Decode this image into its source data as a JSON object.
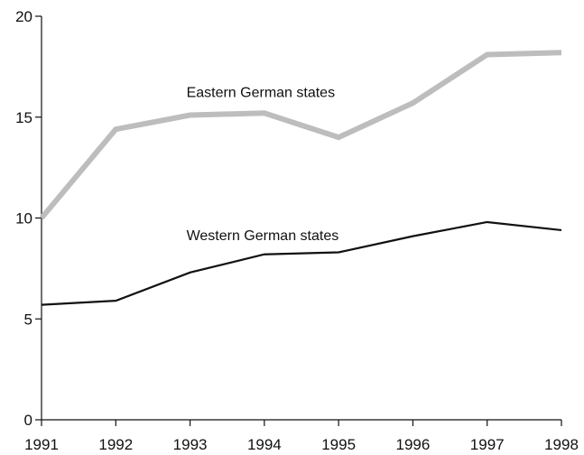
{
  "chart_data": {
    "type": "line",
    "title": "",
    "xlabel": "",
    "ylabel": "",
    "x": [
      1991,
      1992,
      1993,
      1994,
      1995,
      1996,
      1997,
      1998
    ],
    "x_tick_labels": [
      "1991",
      "1992",
      "1993",
      "1994",
      "1995",
      "1996",
      "1997",
      "1998"
    ],
    "ylim": [
      0,
      20
    ],
    "y_ticks": [
      0,
      5,
      10,
      15,
      20
    ],
    "y_tick_labels": [
      "0",
      "5",
      "10",
      "15",
      "20"
    ],
    "grid": false,
    "legend": "none",
    "series": [
      {
        "name": "Eastern German states",
        "values": [
          10.0,
          14.4,
          15.1,
          15.2,
          14.0,
          15.7,
          18.1,
          18.2
        ],
        "color": "#bdbdbd",
        "style": "thick",
        "label_at": {
          "x": 1993.0,
          "y": 16.0
        }
      },
      {
        "name": "Western German states",
        "values": [
          5.7,
          5.9,
          7.3,
          8.2,
          8.3,
          9.1,
          9.8,
          9.4
        ],
        "color": "#111111",
        "style": "thin",
        "label_at": {
          "x": 1993.0,
          "y": 8.9
        }
      }
    ]
  }
}
